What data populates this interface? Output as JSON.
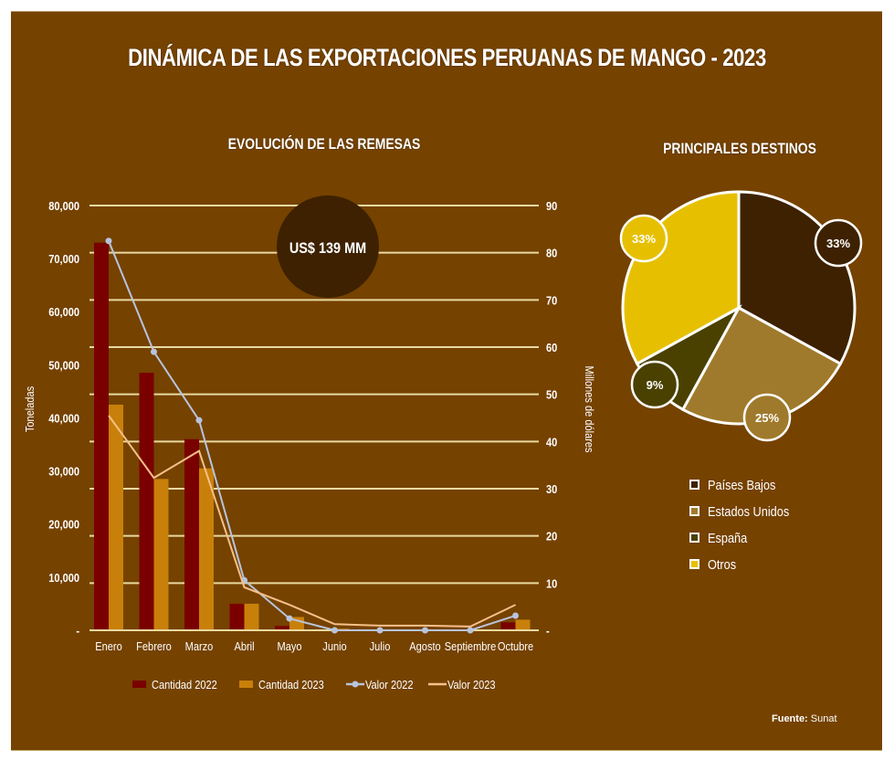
{
  "title": "DINÁMICA DE LAS EXPORTACIONES PERUANAS DE MANGO - 2023",
  "source": {
    "label": "Fuente:",
    "value": "Sunat"
  },
  "colors": {
    "background": "#754200",
    "cantidad_2022": "#7a0000",
    "cantidad_2023": "#c8800a",
    "valor_2022": "#b8c4dc",
    "valor_2023": "#f6c08a",
    "gridline": "#e8d9a0",
    "callout": "#3d2100"
  },
  "chart_data": [
    {
      "type": "bar",
      "title": "EVOLUCIÓN DE LAS REMESAS",
      "xlabel": "",
      "ylabel": "Toneladas",
      "y2label": "Millones de dólares",
      "categories": [
        "Enero",
        "Febrero",
        "Marzo",
        "Abril",
        "Mayo",
        "Junio",
        "Julio",
        "Agosto",
        "Septiembre",
        "Octubre"
      ],
      "ylim": [
        0,
        80000
      ],
      "y2lim": [
        0,
        90
      ],
      "yticks": [
        "-",
        "10,000",
        "20,000",
        "30,000",
        "40,000",
        "50,000",
        "60,000",
        "70,000",
        "80,000"
      ],
      "y2ticks": [
        "-",
        "10",
        "20",
        "30",
        "40",
        "50",
        "60",
        "70",
        "80",
        "90"
      ],
      "grid": true,
      "legend_position": "bottom",
      "series": [
        {
          "name": "Cantidad 2022",
          "type": "bar",
          "axis": "left",
          "values": [
            73000,
            48500,
            36000,
            5000,
            800,
            0,
            0,
            0,
            0,
            1500
          ]
        },
        {
          "name": "Cantidad 2023",
          "type": "bar",
          "axis": "left",
          "values": [
            42500,
            28500,
            30500,
            5000,
            2500,
            300,
            100,
            100,
            100,
            2000
          ]
        },
        {
          "name": "Valor 2022",
          "type": "line",
          "axis": "right",
          "marker": true,
          "values": [
            82.5,
            59,
            44.5,
            10.6,
            2.5,
            0,
            0,
            0,
            0,
            3.1
          ]
        },
        {
          "name": "Valor 2023",
          "type": "line",
          "axis": "right",
          "marker": false,
          "values": [
            45.5,
            32.3,
            38,
            9.1,
            5.4,
            1.3,
            1,
            1,
            0.8,
            5.4
          ]
        }
      ],
      "annotations": [
        "US$ 139 MM"
      ]
    },
    {
      "type": "pie",
      "title": "PRINCIPALES DESTINOS",
      "legend_position": "bottom",
      "slices": [
        {
          "label": "Países Bajos",
          "value": 33,
          "display": "33%",
          "color": "#3d2100"
        },
        {
          "label": "Estados Unidos",
          "value": 25,
          "display": "25%",
          "color": "#a07a2c"
        },
        {
          "label": "España",
          "value": 9,
          "display": "9%",
          "color": "#4a4000"
        },
        {
          "label": "Otros",
          "value": 33,
          "display": "33%",
          "color": "#e6c000"
        }
      ]
    }
  ]
}
